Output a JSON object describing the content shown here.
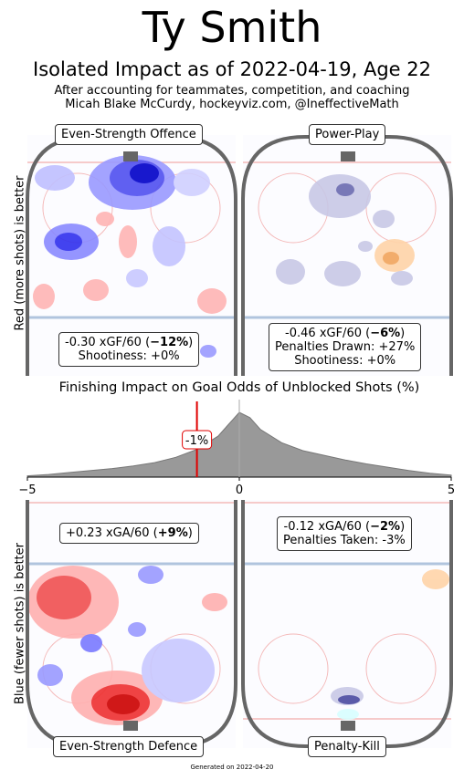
{
  "header": {
    "title": "Ty Smith",
    "subtitle": "Isolated Impact as of 2022-04-19, Age 22",
    "byline_1": "After accounting for teammates, competition, and coaching",
    "byline_2": "Micah Blake McCurdy, hockeyviz.com, @IneffectiveMath"
  },
  "side_labels": {
    "top": "Red (more shots) is better",
    "bottom": "Blue (fewer shots) is better"
  },
  "footer": "Generated on 2022-04-20",
  "colors": {
    "more_shots": "#e8141c",
    "fewer_shots": "#1a1aff",
    "boards": "#666666",
    "blue_line": "#b0c4de",
    "red_line": "#f4b9b9",
    "density": "#999999",
    "marker": "#e00000"
  },
  "chart_data": [
    {
      "type": "heatmap",
      "panel": "Even-Strength Offence",
      "stats": {
        "xgf60": "-0.30 xGF/60 (",
        "xgf60_pct": "−12%",
        "close": ")",
        "shootiness": "Shootiness: +0%"
      }
    },
    {
      "type": "heatmap",
      "panel": "Power-Play",
      "stats": {
        "xgf60": "-0.46 xGF/60 (",
        "xgf60_pct": "−6%",
        "close": ")",
        "penalties": "Penalties Drawn: +27%",
        "shootiness": "Shootiness: +0%"
      }
    },
    {
      "type": "area",
      "title": "Finishing Impact on Goal Odds of Unblocked Shots (%)",
      "xlim": [
        -5,
        5
      ],
      "ticks": [
        "−5",
        "0",
        "5"
      ],
      "marker_value": -1,
      "marker_label": "-1%",
      "x": [
        -5,
        -4.5,
        -4,
        -3.5,
        -3,
        -2.5,
        -2,
        -1.5,
        -1,
        -0.5,
        -0.25,
        0,
        0.25,
        0.5,
        1,
        1.5,
        2,
        2.5,
        3,
        3.5,
        4,
        4.5,
        5
      ],
      "density": [
        0.02,
        0.04,
        0.07,
        0.1,
        0.13,
        0.17,
        0.22,
        0.3,
        0.42,
        0.62,
        0.8,
        0.98,
        0.9,
        0.72,
        0.52,
        0.4,
        0.33,
        0.26,
        0.2,
        0.15,
        0.1,
        0.06,
        0.03
      ]
    },
    {
      "type": "heatmap",
      "panel": "Even-Strength Defence",
      "stats": {
        "xga60": "+0.23 xGA/60 (",
        "xga60_pct": "+9%",
        "close": ")"
      }
    },
    {
      "type": "heatmap",
      "panel": "Penalty-Kill",
      "stats": {
        "xga60": "-0.12 xGA/60 (",
        "xga60_pct": "−2%",
        "close": ")",
        "penalties": "Penalties Taken: -3%"
      }
    }
  ]
}
